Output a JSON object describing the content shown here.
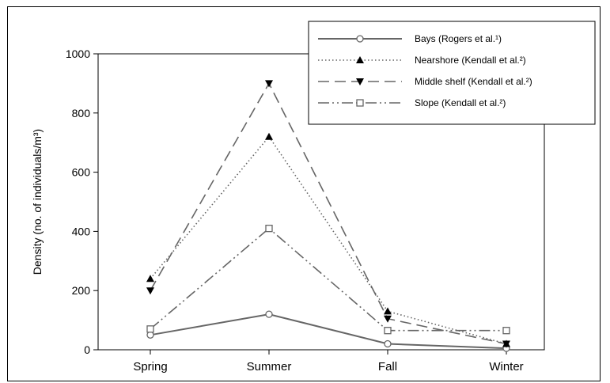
{
  "chart_data": {
    "type": "line",
    "ylabel": "Density (no. of individuals/m³)",
    "categories": [
      "Spring",
      "Summer",
      "Fall",
      "Winter"
    ],
    "ylim": [
      0,
      1000
    ],
    "yticks": [
      0,
      200,
      400,
      600,
      800,
      1000
    ],
    "grid": false,
    "legend_position": "top-right",
    "series": [
      {
        "name": "Bays (Rogers et al.¹)",
        "values": [
          50,
          120,
          20,
          5
        ],
        "line_style": "solid",
        "marker": "open-circle",
        "color": "#666666"
      },
      {
        "name": "Nearshore (Kendall et al.²)",
        "values": [
          240,
          720,
          130,
          20
        ],
        "line_style": "dotted",
        "marker": "filled-triangle-up",
        "color": "#666666"
      },
      {
        "name": "Middle shelf (Kendall et al.²)",
        "values": [
          200,
          900,
          105,
          20
        ],
        "line_style": "dashed",
        "marker": "filled-triangle-down",
        "color": "#666666"
      },
      {
        "name": "Slope (Kendall et al.²)",
        "values": [
          70,
          410,
          65,
          65
        ],
        "line_style": "dash-dot-dot",
        "marker": "open-square",
        "color": "#666666"
      }
    ]
  }
}
